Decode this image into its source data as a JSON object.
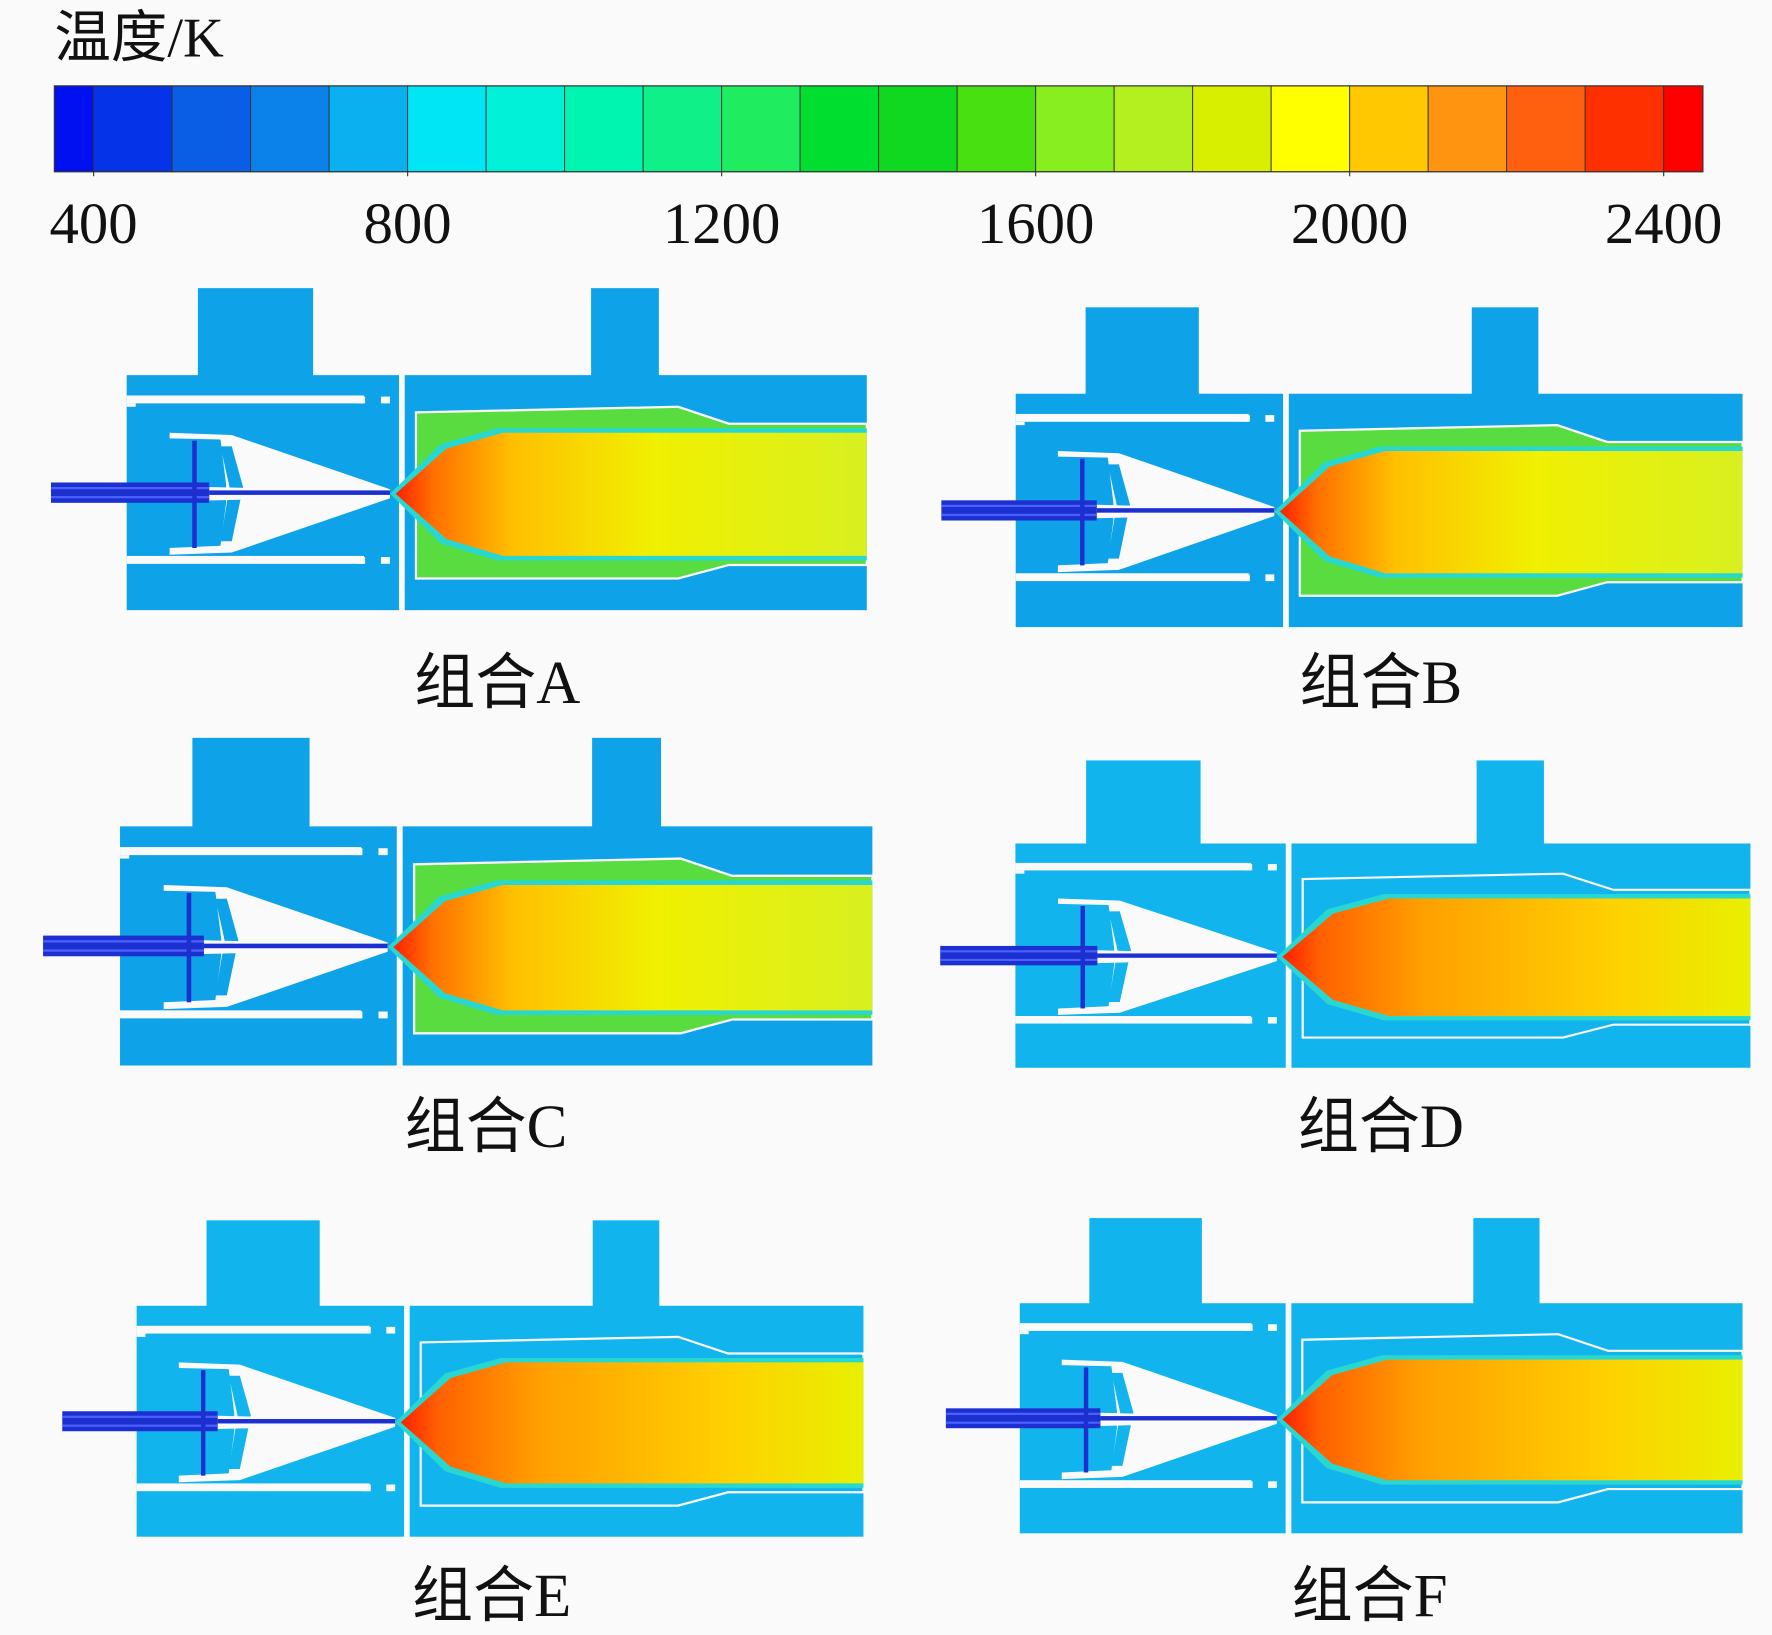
{
  "colorbar": {
    "title": "温度/K",
    "range": [
      350,
      2450
    ],
    "ticks": [
      400,
      800,
      1200,
      1600,
      2000,
      2400
    ]
  },
  "panels": [
    {
      "label": "组合A"
    },
    {
      "label": "组合B"
    },
    {
      "label": "组合C"
    },
    {
      "label": "组合D"
    },
    {
      "label": "组合E"
    },
    {
      "label": "组合F"
    }
  ]
}
